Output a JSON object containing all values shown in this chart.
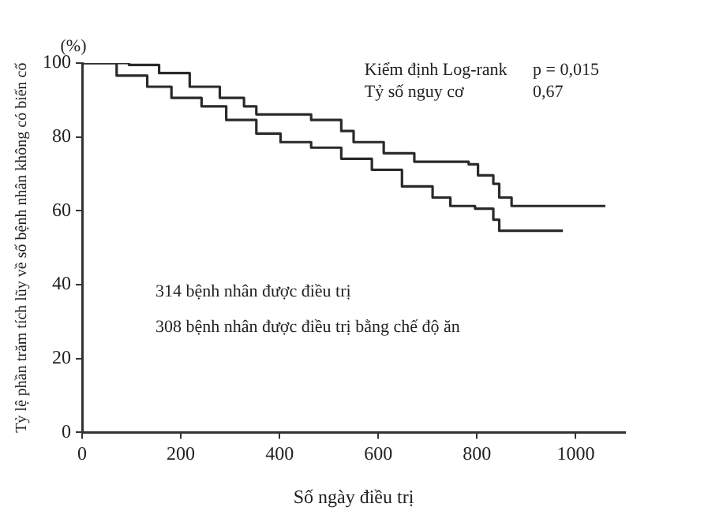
{
  "chart_data": {
    "type": "step",
    "xlabel": "Số ngày điều trị",
    "ylabel": "Tỷ lệ phần trăm tích lũy về số bệnh nhân không có biến cố",
    "xlim": [
      0,
      1100
    ],
    "xticks": [
      0,
      200,
      400,
      600,
      800,
      1000
    ],
    "ylim": [
      0,
      100
    ],
    "yticks": [
      0,
      20,
      40,
      60,
      80,
      100
    ],
    "grid": false,
    "legend": false,
    "marker": "none",
    "line_style": "solid",
    "annotations": [
      "(%)",
      "Kiểm định Log-rank",
      "p = 0,015",
      "Tỷ số nguy cơ",
      "0,67",
      "314 bệnh nhân được điều trị",
      "308 bệnh nhân được điều trị bằng chế độ ăn"
    ],
    "series": [
      {
        "color": "#2a2a2a",
        "x": [
          0,
          70,
          95,
          156,
          218,
          279,
          328,
          353,
          464,
          525,
          550,
          611,
          673,
          783,
          802,
          833,
          845,
          870,
          1060
        ],
        "values": [
          100,
          100,
          99.5,
          97.3,
          93.6,
          90.6,
          88.3,
          86.1,
          84.6,
          81.6,
          78.6,
          75.6,
          73.3,
          72.6,
          69.6,
          67.3,
          63.6,
          61.3,
          61.3
        ]
      },
      {
        "color": "#2a2a2a",
        "x": [
          0,
          33,
          70,
          132,
          181,
          242,
          292,
          353,
          402,
          464,
          525,
          587,
          648,
          710,
          746,
          796,
          833,
          845,
          974
        ],
        "values": [
          100,
          100,
          96.6,
          93.6,
          90.6,
          88.3,
          84.6,
          80.9,
          78.6,
          77.1,
          74.1,
          71.1,
          66.6,
          63.6,
          61.3,
          60.6,
          57.6,
          54.6,
          54.6
        ]
      }
    ]
  }
}
